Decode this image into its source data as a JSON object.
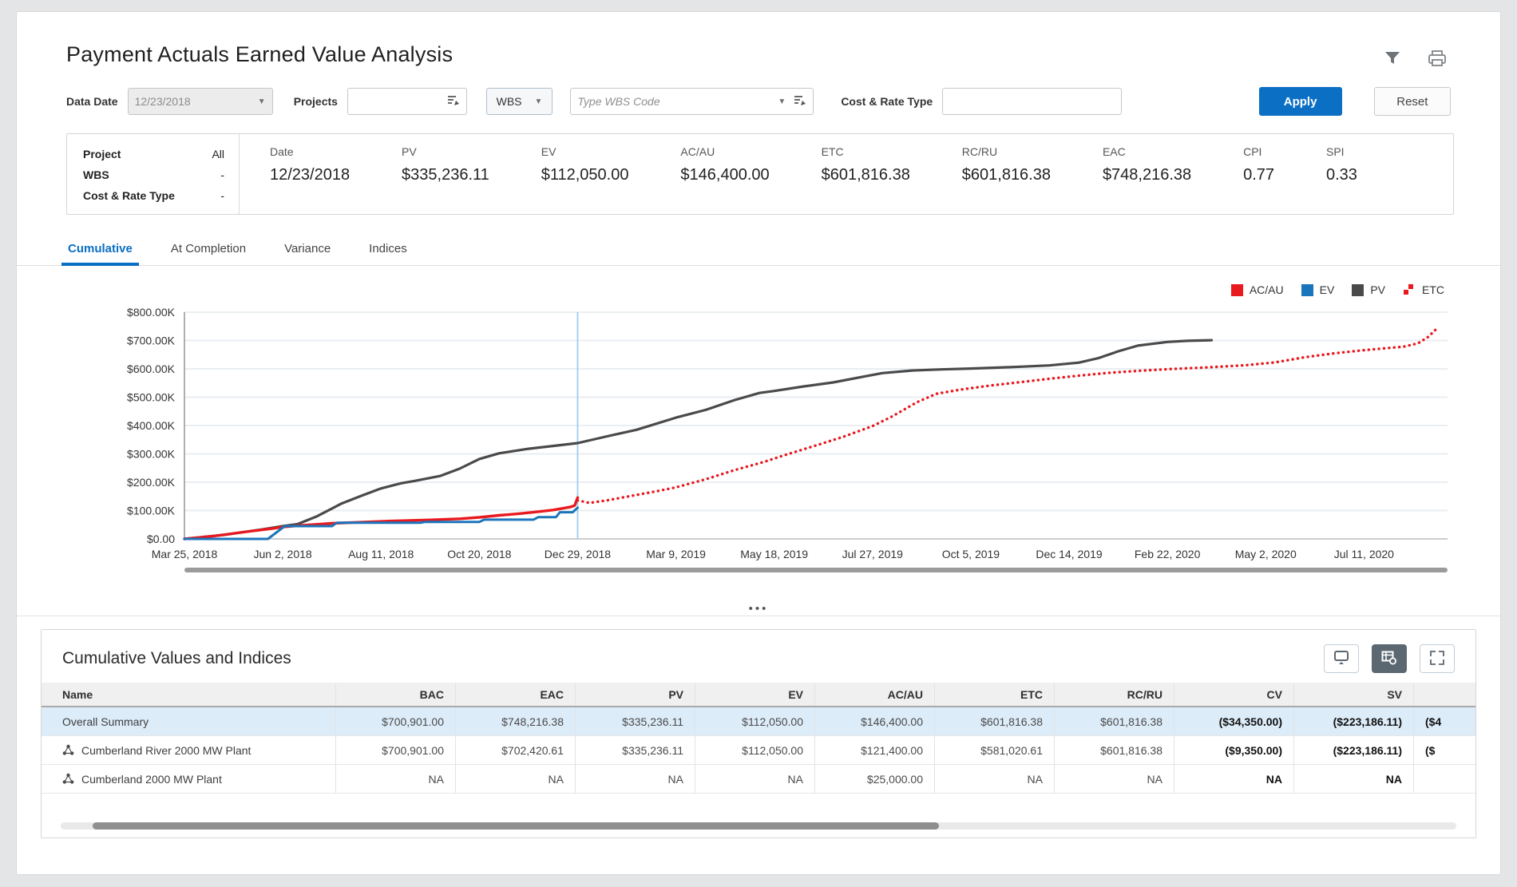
{
  "header": {
    "title": "Payment Actuals Earned Value Analysis"
  },
  "filters": {
    "data_date_label": "Data Date",
    "data_date_value": "12/23/2018",
    "projects_label": "Projects",
    "projects_value": "",
    "wbs_button_label": "WBS",
    "wbs_code_placeholder": "Type WBS Code",
    "cost_rate_label": "Cost & Rate Type",
    "cost_rate_value": "",
    "apply_label": "Apply",
    "reset_label": "Reset"
  },
  "summary": {
    "info": [
      {
        "label": "Project",
        "value": "All"
      },
      {
        "label": "WBS",
        "value": "-"
      },
      {
        "label": "Cost & Rate Type",
        "value": "-"
      }
    ],
    "metrics": [
      {
        "label": "Date",
        "value": "12/23/2018"
      },
      {
        "label": "PV",
        "value": "$335,236.11"
      },
      {
        "label": "EV",
        "value": "$112,050.00"
      },
      {
        "label": "AC/AU",
        "value": "$146,400.00"
      },
      {
        "label": "ETC",
        "value": "$601,816.38"
      },
      {
        "label": "RC/RU",
        "value": "$601,816.38"
      },
      {
        "label": "EAC",
        "value": "$748,216.38"
      },
      {
        "label": "CPI",
        "value": "0.77"
      },
      {
        "label": "SPI",
        "value": "0.33"
      }
    ]
  },
  "tabs": [
    {
      "label": "Cumulative",
      "active": true
    },
    {
      "label": "At Completion",
      "active": false
    },
    {
      "label": "Variance",
      "active": false
    },
    {
      "label": "Indices",
      "active": false
    }
  ],
  "chart_data": {
    "type": "line",
    "title": "Cumulative earned value curves",
    "ylim_k": [
      0,
      800
    ],
    "y_ticks": [
      {
        "value_k": 800,
        "label": "$800.00K"
      },
      {
        "value_k": 700,
        "label": "$700.00K"
      },
      {
        "value_k": 600,
        "label": "$600.00K"
      },
      {
        "value_k": 500,
        "label": "$500.00K"
      },
      {
        "value_k": 400,
        "label": "$400.00K"
      },
      {
        "value_k": 300,
        "label": "$300.00K"
      },
      {
        "value_k": 200,
        "label": "$200.00K"
      },
      {
        "value_k": 100,
        "label": "$100.00K"
      },
      {
        "value_k": 0,
        "label": "$0.00"
      }
    ],
    "x_tick_labels": [
      "Mar 25, 2018",
      "Jun 2, 2018",
      "Aug 11, 2018",
      "Oct 20, 2018",
      "Dec 29, 2018",
      "Mar 9, 2019",
      "May 18, 2019",
      "Jul 27, 2019",
      "Oct 5, 2019",
      "Dec 14, 2019",
      "Feb 22, 2020",
      "May 2, 2020",
      "Jul 11, 2020"
    ],
    "data_date_tick": 4,
    "data_date_line_color": "#9fcdec",
    "grid": true,
    "legend_position": "top-right",
    "legend": [
      {
        "label": "AC/AU",
        "color": "#e8191f",
        "swatch": "solid"
      },
      {
        "label": "EV",
        "color": "#1b75bb",
        "swatch": "solid"
      },
      {
        "label": "PV",
        "color": "#4a4a4a",
        "swatch": "solid"
      },
      {
        "label": "ETC",
        "color": "#e8191f",
        "swatch": "dotted"
      }
    ],
    "series": [
      {
        "name": "PV",
        "color": "#4a4a4a",
        "style": "solid",
        "width": 3.2,
        "points": [
          [
            0,
            0
          ],
          [
            0.4,
            14
          ],
          [
            0.8,
            34
          ],
          [
            1,
            45
          ],
          [
            1.15,
            52
          ],
          [
            1.35,
            80
          ],
          [
            1.6,
            125
          ],
          [
            1.8,
            152
          ],
          [
            2,
            178
          ],
          [
            2.2,
            196
          ],
          [
            2.35,
            205
          ],
          [
            2.6,
            222
          ],
          [
            2.8,
            248
          ],
          [
            3,
            282
          ],
          [
            3.2,
            302
          ],
          [
            3.5,
            318
          ],
          [
            3.8,
            330
          ],
          [
            4,
            338
          ],
          [
            4.3,
            362
          ],
          [
            4.6,
            385
          ],
          [
            5,
            428
          ],
          [
            5.3,
            455
          ],
          [
            5.6,
            490
          ],
          [
            5.85,
            515
          ],
          [
            6,
            522
          ],
          [
            6.3,
            538
          ],
          [
            6.6,
            552
          ],
          [
            6.9,
            572
          ],
          [
            7.1,
            585
          ],
          [
            7.4,
            594
          ],
          [
            7.7,
            598
          ],
          [
            8,
            601
          ],
          [
            8.4,
            606
          ],
          [
            8.8,
            612
          ],
          [
            9.1,
            622
          ],
          [
            9.3,
            638
          ],
          [
            9.5,
            662
          ],
          [
            9.7,
            682
          ],
          [
            10,
            695
          ],
          [
            10.2,
            699
          ],
          [
            10.45,
            701
          ]
        ]
      },
      {
        "name": "AC/AU",
        "color": "#e8191f",
        "style": "solid",
        "width": 3.4,
        "points": [
          [
            0,
            0
          ],
          [
            0.3,
            10
          ],
          [
            0.6,
            24
          ],
          [
            0.9,
            37
          ],
          [
            1,
            42
          ],
          [
            1.2,
            48
          ],
          [
            1.5,
            55
          ],
          [
            1.8,
            59
          ],
          [
            2.1,
            63
          ],
          [
            2.5,
            67
          ],
          [
            2.8,
            71
          ],
          [
            3,
            76
          ],
          [
            3.2,
            83
          ],
          [
            3.4,
            89
          ],
          [
            3.6,
            96
          ],
          [
            3.75,
            102
          ],
          [
            3.85,
            108
          ],
          [
            3.93,
            113
          ],
          [
            3.97,
            118
          ],
          [
            4,
            146
          ]
        ]
      },
      {
        "name": "EV",
        "color": "#1b75bb",
        "style": "solid",
        "width": 3,
        "points": [
          [
            0,
            0
          ],
          [
            0.85,
            0
          ],
          [
            1.02,
            45
          ],
          [
            1.5,
            45
          ],
          [
            1.55,
            57
          ],
          [
            2.4,
            57
          ],
          [
            2.45,
            60
          ],
          [
            3,
            60
          ],
          [
            3.05,
            68
          ],
          [
            3.55,
            68
          ],
          [
            3.6,
            77
          ],
          [
            3.78,
            77
          ],
          [
            3.82,
            94
          ],
          [
            3.95,
            94
          ],
          [
            4,
            110
          ]
        ]
      },
      {
        "name": "ETC",
        "color": "#e8191f",
        "style": "dotted",
        "width": 3.4,
        "points": [
          [
            4,
            136
          ],
          [
            4.12,
            127
          ],
          [
            4.3,
            136
          ],
          [
            4.55,
            152
          ],
          [
            4.8,
            168
          ],
          [
            5,
            182
          ],
          [
            5.3,
            210
          ],
          [
            5.6,
            243
          ],
          [
            5.9,
            272
          ],
          [
            6.1,
            295
          ],
          [
            6.4,
            327
          ],
          [
            6.7,
            360
          ],
          [
            7,
            398
          ],
          [
            7.2,
            432
          ],
          [
            7.45,
            482
          ],
          [
            7.65,
            512
          ],
          [
            7.9,
            527
          ],
          [
            8.2,
            541
          ],
          [
            8.5,
            553
          ],
          [
            8.8,
            565
          ],
          [
            9.1,
            576
          ],
          [
            9.4,
            586
          ],
          [
            9.7,
            593
          ],
          [
            10,
            599
          ],
          [
            10.4,
            605
          ],
          [
            10.8,
            613
          ],
          [
            11.1,
            623
          ],
          [
            11.4,
            641
          ],
          [
            11.7,
            655
          ],
          [
            12,
            666
          ],
          [
            12.2,
            672
          ],
          [
            12.4,
            678
          ],
          [
            12.55,
            690
          ],
          [
            12.65,
            712
          ],
          [
            12.75,
            745
          ]
        ]
      }
    ]
  },
  "splitter_dots": "•••",
  "panel": {
    "title": "Cumulative Values and Indices",
    "table": {
      "columns": [
        "Name",
        "BAC",
        "EAC",
        "PV",
        "EV",
        "AC/AU",
        "ETC",
        "RC/RU",
        "CV",
        "SV",
        ""
      ],
      "bold_columns": [
        "CV",
        "SV",
        ""
      ],
      "rows": [
        {
          "name": "Overall Summary",
          "icon": false,
          "selected": true,
          "values": [
            "$700,901.00",
            "$748,216.38",
            "$335,236.11",
            "$112,050.00",
            "$146,400.00",
            "$601,816.38",
            "$601,816.38",
            "($34,350.00)",
            "($223,186.11)",
            "($4"
          ]
        },
        {
          "name": "Cumberland River 2000 MW Plant",
          "icon": true,
          "selected": false,
          "values": [
            "$700,901.00",
            "$702,420.61",
            "$335,236.11",
            "$112,050.00",
            "$121,400.00",
            "$581,020.61",
            "$601,816.38",
            "($9,350.00)",
            "($223,186.11)",
            "($"
          ]
        },
        {
          "name": "Cumberland 2000 MW Plant",
          "icon": true,
          "selected": false,
          "values": [
            "NA",
            "NA",
            "NA",
            "NA",
            "$25,000.00",
            "NA",
            "NA",
            "NA",
            "NA",
            ""
          ]
        }
      ]
    }
  },
  "colors": {
    "accent_blue": "#0b6fc4",
    "series_red": "#e8191f",
    "series_blue": "#1b75bb",
    "series_gray": "#4a4a4a",
    "selected_row_bg": "#ddecf9",
    "data_date_line": "#9fcdec"
  }
}
